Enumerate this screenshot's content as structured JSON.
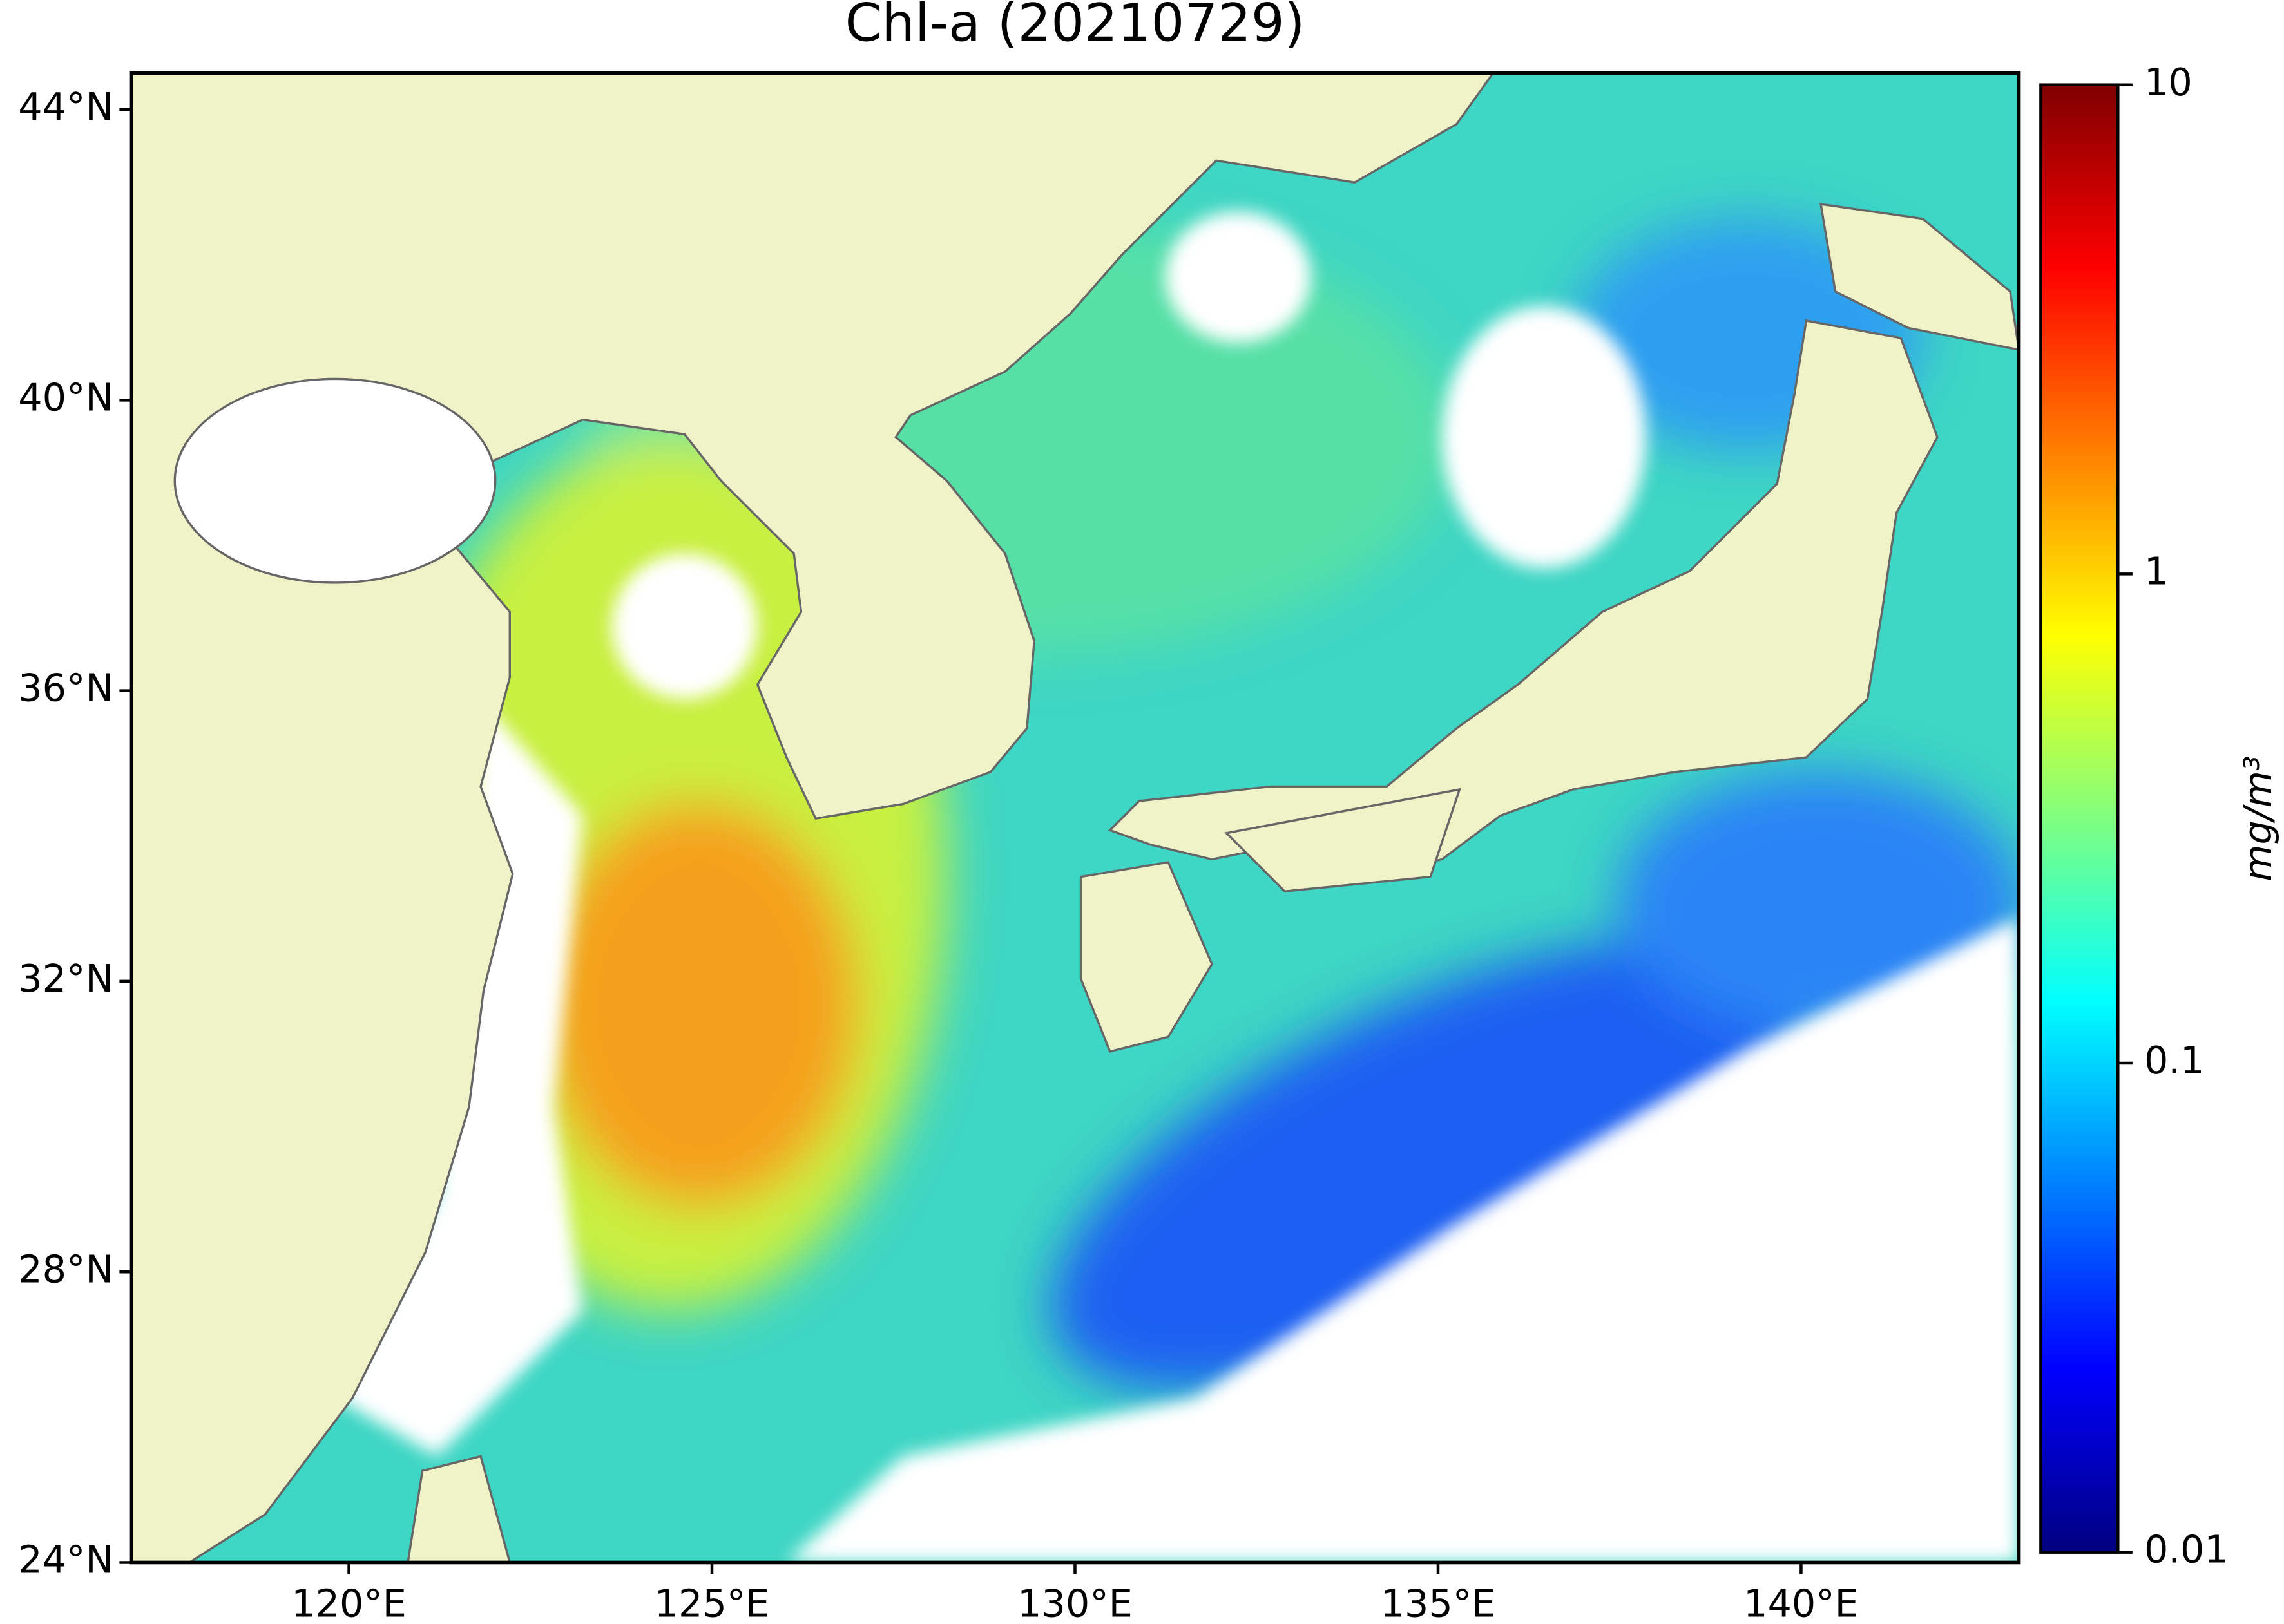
{
  "map": {
    "title": "Chl-a (20210729)",
    "xlim": [
      117,
      143
    ],
    "ylim": [
      24,
      44.5
    ],
    "xticks": [
      {
        "value": 120,
        "label": "120°E"
      },
      {
        "value": 125,
        "label": "125°E"
      },
      {
        "value": 130,
        "label": "130°E"
      },
      {
        "value": 135,
        "label": "135°E"
      },
      {
        "value": 140,
        "label": "140°E"
      }
    ],
    "yticks": [
      {
        "value": 24,
        "label": "24°N"
      },
      {
        "value": 28,
        "label": "28°N"
      },
      {
        "value": 32,
        "label": "32°N"
      },
      {
        "value": 36,
        "label": "36°N"
      },
      {
        "value": 40,
        "label": "40°N"
      },
      {
        "value": 44,
        "label": "44°N"
      }
    ],
    "colorbar": {
      "label": "mg/m³",
      "scale": "log",
      "colormap": "jet",
      "lim": [
        0.01,
        10
      ],
      "ticks": [
        0.01,
        0.1,
        1,
        10
      ]
    }
  }
}
